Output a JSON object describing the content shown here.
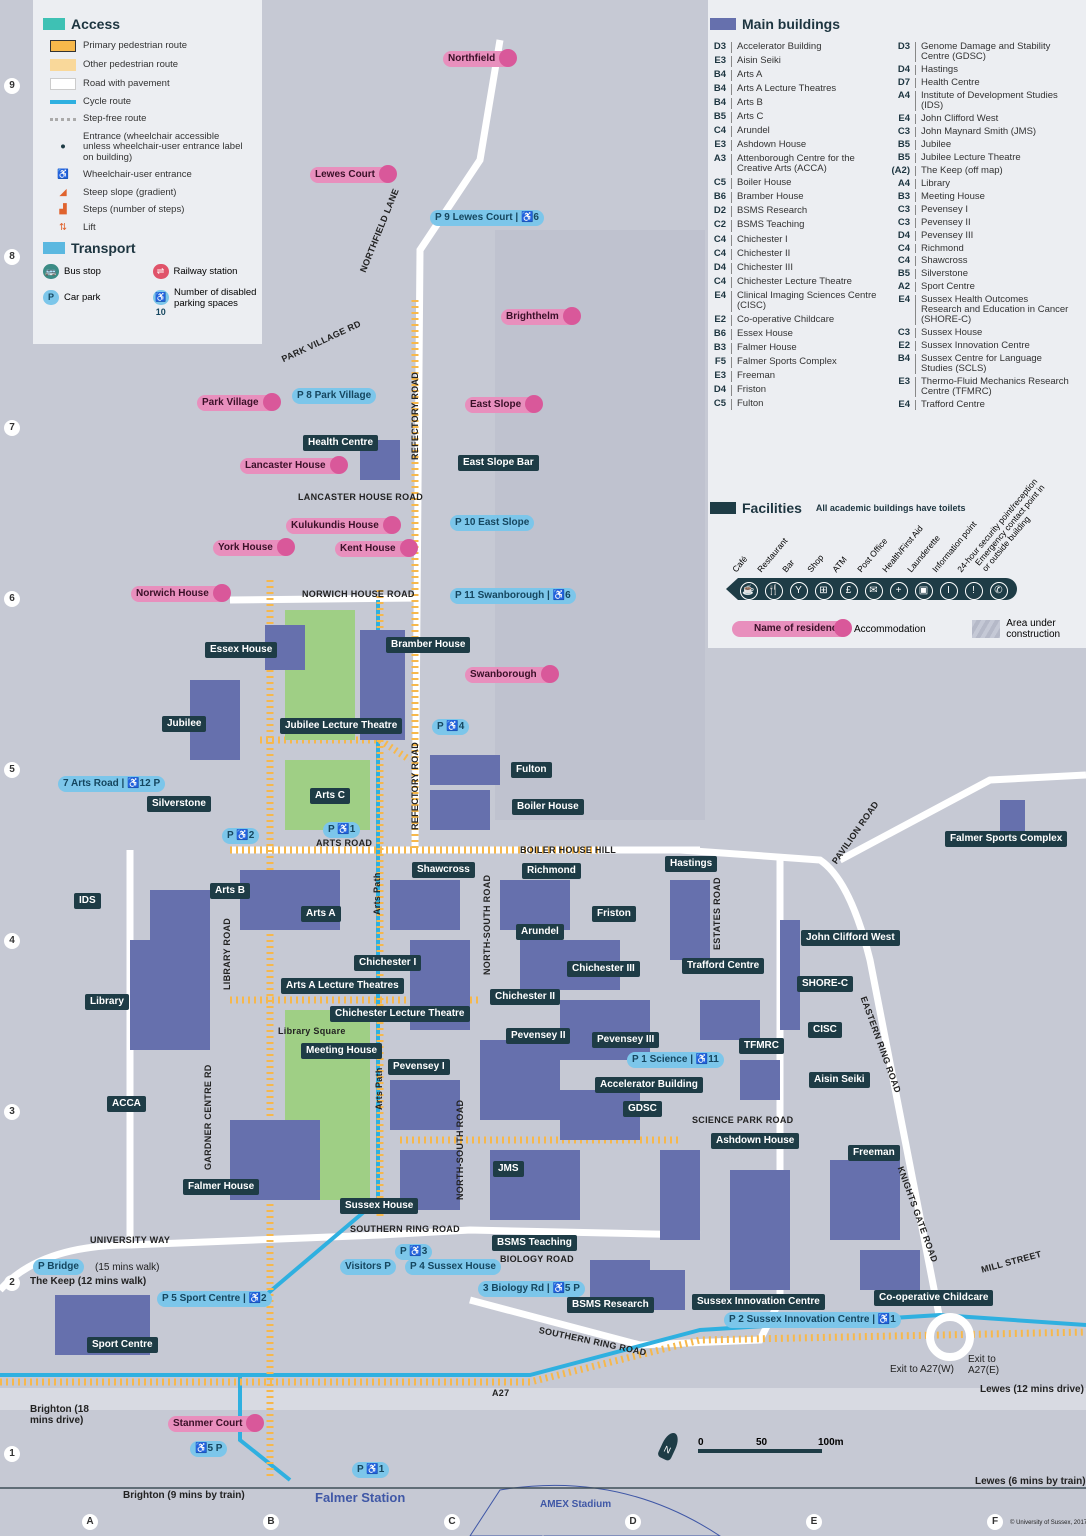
{
  "access_legend": {
    "title": "Access",
    "items": [
      {
        "label": "Primary pedestrian route",
        "icon": "primary-route-swatch",
        "color": "#f7b84b"
      },
      {
        "label": "Other pedestrian route",
        "icon": "other-route-swatch",
        "color": "#f9d89a"
      },
      {
        "label": "Road with pavement",
        "icon": "road-swatch",
        "color": "#ffffff"
      },
      {
        "label": "Cycle route",
        "icon": "cycle-route-swatch",
        "color": "#2fb0e0"
      },
      {
        "label": "Step-free route",
        "icon": "step-free-dots",
        "color": "#aaaaaa"
      },
      {
        "label": "Entrance (wheelchair accessible unless wheelchair-user entrance label on building)",
        "icon": "entrance-pin-icon"
      },
      {
        "label": "Wheelchair-user entrance",
        "icon": "wheelchair-entrance-icon"
      },
      {
        "label": "Steep slope (gradient)",
        "icon": "steep-slope-icon"
      },
      {
        "label": "Steps (number of steps)",
        "icon": "steps-icon"
      },
      {
        "label": "Lift",
        "icon": "lift-icon"
      }
    ]
  },
  "transport_legend": {
    "title": "Transport",
    "items": [
      {
        "label": "Bus stop",
        "icon": "bus-stop-icon"
      },
      {
        "label": "Railway station",
        "icon": "railway-station-icon"
      },
      {
        "label": "Car park",
        "icon": "car-park-icon",
        "symbol": "P"
      },
      {
        "label": "Number of disabled parking spaces",
        "icon": "disabled-parking-icon",
        "symbol": "♿10"
      }
    ]
  },
  "main_buildings": {
    "title": "Main buildings",
    "col1": [
      [
        "D3",
        "Accelerator Building"
      ],
      [
        "E3",
        "Aisin Seiki"
      ],
      [
        "B4",
        "Arts A"
      ],
      [
        "B4",
        "Arts A Lecture Theatres"
      ],
      [
        "B4",
        "Arts B"
      ],
      [
        "B5",
        "Arts C"
      ],
      [
        "C4",
        "Arundel"
      ],
      [
        "E3",
        "Ashdown House"
      ],
      [
        "A3",
        "Attenborough Centre for the Creative Arts (ACCA)"
      ],
      [
        "C5",
        "Boiler House"
      ],
      [
        "B6",
        "Bramber House"
      ],
      [
        "D2",
        "BSMS Research"
      ],
      [
        "C2",
        "BSMS Teaching"
      ],
      [
        "C4",
        "Chichester I"
      ],
      [
        "C4",
        "Chichester II"
      ],
      [
        "D4",
        "Chichester III"
      ],
      [
        "C4",
        "Chichester Lecture Theatre"
      ],
      [
        "E4",
        "Clinical Imaging Sciences Centre (CISC)"
      ],
      [
        "E2",
        "Co-operative Childcare"
      ],
      [
        "B6",
        "Essex House"
      ],
      [
        "B3",
        "Falmer House"
      ],
      [
        "F5",
        "Falmer Sports Complex"
      ],
      [
        "E3",
        "Freeman"
      ],
      [
        "D4",
        "Friston"
      ],
      [
        "C5",
        "Fulton"
      ]
    ],
    "col2": [
      [
        "D3",
        "Genome Damage and Stability Centre (GDSC)"
      ],
      [
        "D4",
        "Hastings"
      ],
      [
        "D7",
        "Health Centre"
      ],
      [
        "A4",
        "Institute of Development Studies (IDS)"
      ],
      [
        "E4",
        "John Clifford West"
      ],
      [
        "C3",
        "John Maynard Smith (JMS)"
      ],
      [
        "B5",
        "Jubilee"
      ],
      [
        "B5",
        "Jubilee Lecture Theatre"
      ],
      [
        "(A2)",
        "The Keep (off map)"
      ],
      [
        "A4",
        "Library"
      ],
      [
        "B3",
        "Meeting House"
      ],
      [
        "C3",
        "Pevensey I"
      ],
      [
        "C3",
        "Pevensey II"
      ],
      [
        "D4",
        "Pevensey III"
      ],
      [
        "C4",
        "Richmond"
      ],
      [
        "C4",
        "Shawcross"
      ],
      [
        "B5",
        "Silverstone"
      ],
      [
        "A2",
        "Sport Centre"
      ],
      [
        "E4",
        "Sussex Health Outcomes Research and Education in Cancer (SHORE-C)"
      ],
      [
        "C3",
        "Sussex House"
      ],
      [
        "E2",
        "Sussex Innovation Centre"
      ],
      [
        "B4",
        "Sussex Centre for Language Studies (SCLS)"
      ],
      [
        "E3",
        "Thermo-Fluid Mechanics Research Centre (TFMRC)"
      ],
      [
        "E4",
        "Trafford Centre"
      ]
    ]
  },
  "facilities": {
    "title": "Facilities",
    "note": "All academic buildings have toilets",
    "items": [
      {
        "label": "Café",
        "glyph": "☕",
        "icon": "cafe-icon"
      },
      {
        "label": "Restaurant",
        "glyph": "🍴",
        "icon": "restaurant-icon"
      },
      {
        "label": "Bar",
        "glyph": "Y",
        "icon": "bar-icon"
      },
      {
        "label": "Shop",
        "glyph": "⊞",
        "icon": "shop-icon"
      },
      {
        "label": "ATM",
        "glyph": "£",
        "icon": "atm-icon"
      },
      {
        "label": "Post Office",
        "glyph": "✉",
        "icon": "post-office-icon"
      },
      {
        "label": "Health/First Aid",
        "glyph": "+",
        "icon": "first-aid-icon"
      },
      {
        "label": "Launderette",
        "glyph": "▣",
        "icon": "launderette-icon"
      },
      {
        "label": "Information point",
        "glyph": "I",
        "icon": "information-icon"
      },
      {
        "label": "24-hour security point/reception",
        "glyph": "!",
        "icon": "security-icon"
      },
      {
        "label": "Emergency contact point in or outside building",
        "glyph": "✆",
        "icon": "emergency-phone-icon"
      }
    ],
    "residence_sample": "Name of residence",
    "residence_label": "Accommodation",
    "construction_label": "Area under construction"
  },
  "colors": {
    "building": "#6670ad",
    "label": "#1e3c46",
    "residence": "#e88fbd",
    "parking": "#7cc6ea",
    "primary_route": "#f7b84b",
    "cycle": "#2fb0e0",
    "steps": "#e0632e"
  },
  "map": {
    "buildings": [
      "Essex House",
      "Jubilee",
      "Jubilee Lecture Theatre",
      "Silverstone",
      "Arts C",
      "Bramber House",
      "Fulton",
      "Boiler House",
      "IDS",
      "Arts B",
      "Shawcross",
      "Richmond",
      "Hastings",
      "Arts A",
      "Friston",
      "Arundel",
      "John Clifford West",
      "Library",
      "Chichester I",
      "Arts A Lecture Theatres",
      "Chichester III",
      "Trafford Centre",
      "SHORE-C",
      "Chichester II",
      "Chichester Lecture Theatre",
      "CISC",
      "Pevensey II",
      "Pevensey III",
      "Meeting House",
      "TFMRC",
      "Pevensey I",
      "Accelerator Building",
      "Aisin Seiki",
      "ACCA",
      "GDSC",
      "Ashdown House",
      "Freeman",
      "Falmer House",
      "JMS",
      "Sussex House",
      "BSMS Teaching",
      "Sussex Innovation Centre",
      "BSMS Research",
      "Co-operative Childcare",
      "Sport Centre",
      "Health Centre",
      "East Slope Bar",
      "Falmer Sports Complex"
    ],
    "residences": [
      "Northfield",
      "Lewes Court",
      "Brighthelm",
      "Park Village",
      "East Slope",
      "Lancaster House",
      "Kulukundis House",
      "York House",
      "Kent House",
      "Norwich House",
      "Swanborough",
      "Stanmer Court"
    ],
    "roads": [
      "NORTHFIELD LANE",
      "PARK VILLAGE RD",
      "REFECTORY ROAD",
      "REFECTORY ROAD",
      "LANCASTER HOUSE ROAD",
      "NORWICH HOUSE ROAD",
      "ARTS ROAD",
      "BOILER HOUSE HILL",
      "PAVILION ROAD",
      "NORTH-SOUTH ROAD",
      "NORTH-SOUTH ROAD",
      "ESTATES ROAD",
      "LIBRARY ROAD",
      "EASTERN RING ROAD",
      "SCIENCE PARK ROAD",
      "GARDNER CENTRE RD",
      "UNIVERSITY WAY",
      "SOUTHERN RING ROAD",
      "SOUTHERN RING ROAD",
      "BIOLOGY ROAD",
      "KNIGHTS GATE ROAD",
      "MILL STREET",
      "A27",
      "Arts Path",
      "Arts Path",
      "Library Square"
    ],
    "parking": [
      "P 9 Lewes Court | ♿6",
      "P 8 Park Village",
      "P 10 East Slope",
      "P 11 Swanborough | ♿6",
      "7 Arts Road | ♿12 P",
      "P 1 Science | ♿11",
      "P 5 Sport Centre | ♿2",
      "P 4 Sussex House",
      "3 Biology Rd | ♿5 P",
      "P 2 Sussex Innovation Centre | ♿1",
      "P Bridge",
      "Visitors P",
      "P ♿4",
      "P ♿1",
      "P ♿2",
      "P ♿3",
      "♿5 P",
      "P ♿1"
    ],
    "notes": [
      "(15 mins walk)",
      "The Keep (12 mins walk)",
      "Brighton (18 mins drive)",
      "Brighton (9 mins by train)",
      "Falmer Station",
      "AMEX Stadium",
      "Exit to A27(W)",
      "Exit to A27(E)",
      "Lewes (12 mins drive)",
      "Lewes (6 mins by train)",
      "© University of Sussex, 2017."
    ],
    "scale": [
      "0",
      "50",
      "100m"
    ],
    "north": "N",
    "grid_cols": [
      "A",
      "B",
      "C",
      "D",
      "E",
      "F"
    ],
    "grid_rows": [
      "9",
      "8",
      "7",
      "6",
      "5",
      "4",
      "3",
      "2",
      "1"
    ]
  }
}
